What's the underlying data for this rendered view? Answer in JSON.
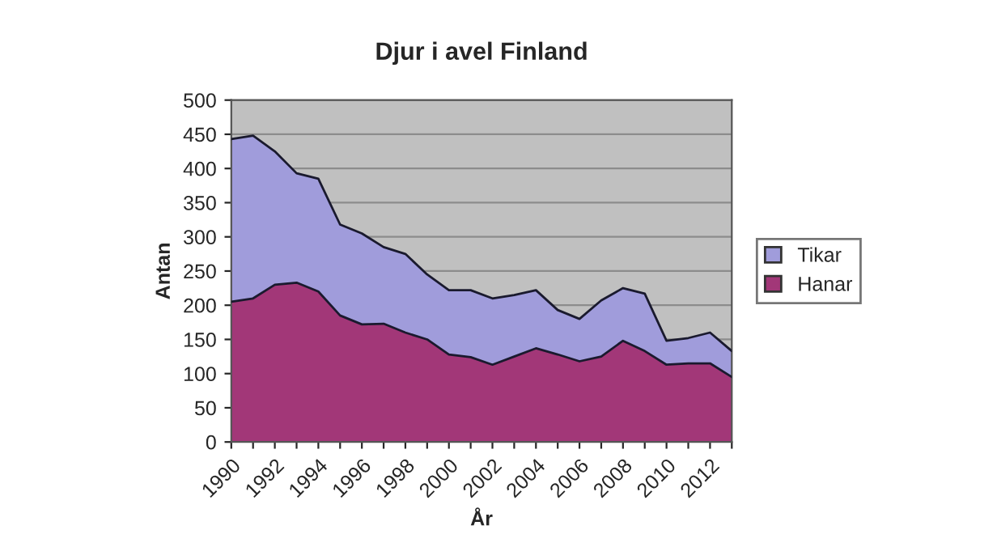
{
  "chart_data": {
    "type": "area",
    "title": "Djur i avel Finland",
    "xlabel": "År",
    "ylabel": "Antan",
    "categories": [
      "1990",
      null,
      "1992",
      null,
      "1994",
      null,
      "1996",
      null,
      "1998",
      null,
      "2000",
      null,
      "2002",
      null,
      "2004",
      null,
      "2006",
      null,
      "2008",
      null,
      "2010",
      null,
      "2012",
      null
    ],
    "stacked": true,
    "series": [
      {
        "name": "Hanar",
        "color": "#a23778",
        "values": [
          205,
          210,
          230,
          233,
          220,
          185,
          172,
          173,
          160,
          150,
          128,
          124,
          113,
          125,
          137,
          128,
          118,
          125,
          148,
          133,
          113,
          115,
          115,
          95
        ]
      },
      {
        "name": "Tikar",
        "color": "#a09cdb",
        "values": [
          238,
          238,
          195,
          160,
          165,
          133,
          133,
          112,
          115,
          95,
          94,
          98,
          97,
          90,
          85,
          65,
          62,
          82,
          77,
          84,
          35,
          37,
          45,
          38
        ]
      }
    ],
    "ylim": [
      0,
      500
    ],
    "yticks": [
      0,
      50,
      100,
      150,
      200,
      250,
      300,
      350,
      400,
      450,
      500
    ],
    "grid": "y",
    "legend": "right"
  }
}
